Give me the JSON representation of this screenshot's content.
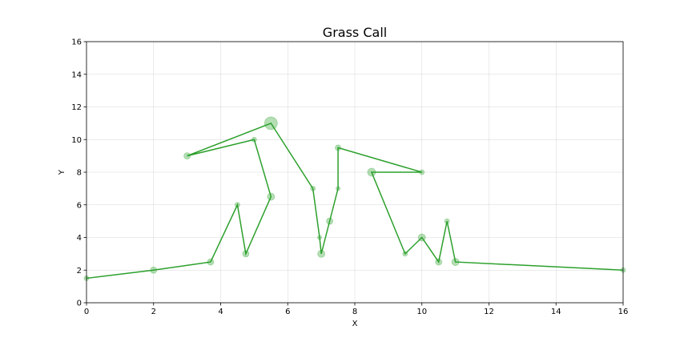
{
  "chart_data": {
    "type": "scatter",
    "title": "Grass Call",
    "xlabel": "X",
    "ylabel": "Y",
    "xlim": [
      0,
      16
    ],
    "ylim": [
      0,
      16
    ],
    "xticks": [
      "0",
      "2",
      "4",
      "6",
      "8",
      "10",
      "12",
      "14",
      "16"
    ],
    "yticks": [
      "0",
      "2",
      "4",
      "6",
      "8",
      "10",
      "12",
      "14",
      "16"
    ],
    "grid": true,
    "legend": "none",
    "series": [
      {
        "color": "#2ca02c",
        "points": [
          {
            "x": 0,
            "y": 1.5,
            "s": 3
          },
          {
            "x": 2,
            "y": 2,
            "s": 4
          },
          {
            "x": 3.7,
            "y": 2.5,
            "s": 4
          },
          {
            "x": 4.5,
            "y": 6,
            "s": 3
          },
          {
            "x": 4.75,
            "y": 3,
            "s": 4
          },
          {
            "x": 5.5,
            "y": 6.5,
            "s": 4.5
          },
          {
            "x": 5,
            "y": 10,
            "s": 3
          },
          {
            "x": 3,
            "y": 9,
            "s": 4
          },
          {
            "x": 5.5,
            "y": 11,
            "s": 8
          },
          {
            "x": 6.75,
            "y": 7,
            "s": 3
          },
          {
            "x": 6.95,
            "y": 4,
            "s": 2.5
          },
          {
            "x": 7,
            "y": 3,
            "s": 4.5
          },
          {
            "x": 7.25,
            "y": 5,
            "s": 4
          },
          {
            "x": 7.5,
            "y": 7,
            "s": 2.5
          },
          {
            "x": 7.5,
            "y": 9.5,
            "s": 3.5
          },
          {
            "x": 10,
            "y": 8,
            "s": 3
          },
          {
            "x": 8.5,
            "y": 8,
            "s": 5
          },
          {
            "x": 9.5,
            "y": 3,
            "s": 3
          },
          {
            "x": 10,
            "y": 4,
            "s": 4.5
          },
          {
            "x": 10.5,
            "y": 2.5,
            "s": 4
          },
          {
            "x": 10.75,
            "y": 5,
            "s": 3
          },
          {
            "x": 11,
            "y": 2.5,
            "s": 4.5
          },
          {
            "x": 16,
            "y": 2,
            "s": 3
          }
        ]
      }
    ]
  }
}
